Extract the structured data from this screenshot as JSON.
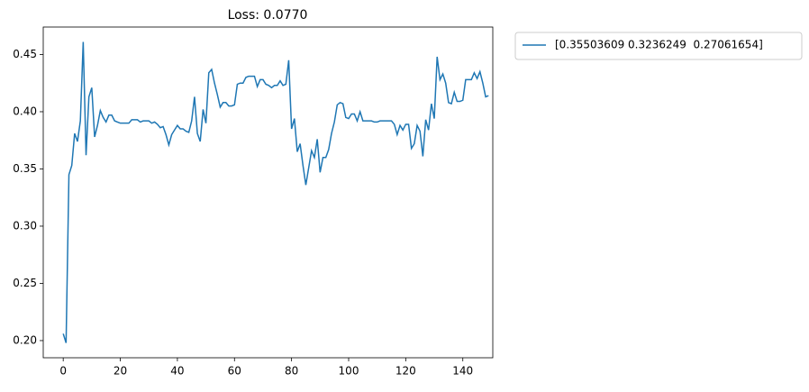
{
  "chart_data": {
    "type": "line",
    "title": "Loss: 0.0770",
    "series": [
      {
        "name": "[0.35503609 0.3236249  0.27061654]",
        "color": "#1f77b4",
        "values": [
          0.206,
          0.198,
          0.345,
          0.353,
          0.381,
          0.374,
          0.392,
          0.461,
          0.362,
          0.413,
          0.421,
          0.378,
          0.388,
          0.401,
          0.395,
          0.391,
          0.397,
          0.397,
          0.392,
          0.391,
          0.39,
          0.39,
          0.39,
          0.39,
          0.393,
          0.393,
          0.393,
          0.391,
          0.392,
          0.392,
          0.392,
          0.39,
          0.391,
          0.389,
          0.386,
          0.387,
          0.38,
          0.371,
          0.38,
          0.384,
          0.388,
          0.385,
          0.385,
          0.383,
          0.382,
          0.392,
          0.413,
          0.381,
          0.374,
          0.402,
          0.39,
          0.434,
          0.437,
          0.425,
          0.415,
          0.404,
          0.408,
          0.408,
          0.405,
          0.405,
          0.406,
          0.424,
          0.425,
          0.425,
          0.43,
          0.431,
          0.431,
          0.431,
          0.422,
          0.428,
          0.428,
          0.424,
          0.423,
          0.421,
          0.423,
          0.423,
          0.427,
          0.423,
          0.424,
          0.445,
          0.385,
          0.394,
          0.365,
          0.372,
          0.353,
          0.336,
          0.351,
          0.366,
          0.36,
          0.376,
          0.347,
          0.36,
          0.36,
          0.367,
          0.381,
          0.391,
          0.406,
          0.408,
          0.407,
          0.395,
          0.394,
          0.398,
          0.398,
          0.392,
          0.4,
          0.392,
          0.392,
          0.392,
          0.392,
          0.391,
          0.391,
          0.392,
          0.392,
          0.392,
          0.392,
          0.392,
          0.389,
          0.38,
          0.388,
          0.384,
          0.389,
          0.389,
          0.368,
          0.372,
          0.388,
          0.383,
          0.361,
          0.393,
          0.384,
          0.407,
          0.394,
          0.448,
          0.428,
          0.433,
          0.425,
          0.408,
          0.407,
          0.417,
          0.409,
          0.409,
          0.41,
          0.428,
          0.428,
          0.428,
          0.434,
          0.429,
          0.435,
          0.425,
          0.413,
          0.414
        ]
      }
    ],
    "xlim": [
      -7,
      150.5
    ],
    "xticks": [
      0,
      20,
      40,
      60,
      80,
      100,
      120,
      140
    ],
    "ylim": [
      0.185,
      0.474
    ],
    "yticks": [
      {
        "value": 0.2,
        "label": "0.20"
      },
      {
        "value": 0.25,
        "label": "0.25"
      },
      {
        "value": 0.3,
        "label": "0.30"
      },
      {
        "value": 0.35,
        "label": "0.35"
      },
      {
        "value": 0.4,
        "label": "0.40"
      },
      {
        "value": 0.45,
        "label": "0.45"
      }
    ],
    "legend": "outside-upper-right"
  }
}
